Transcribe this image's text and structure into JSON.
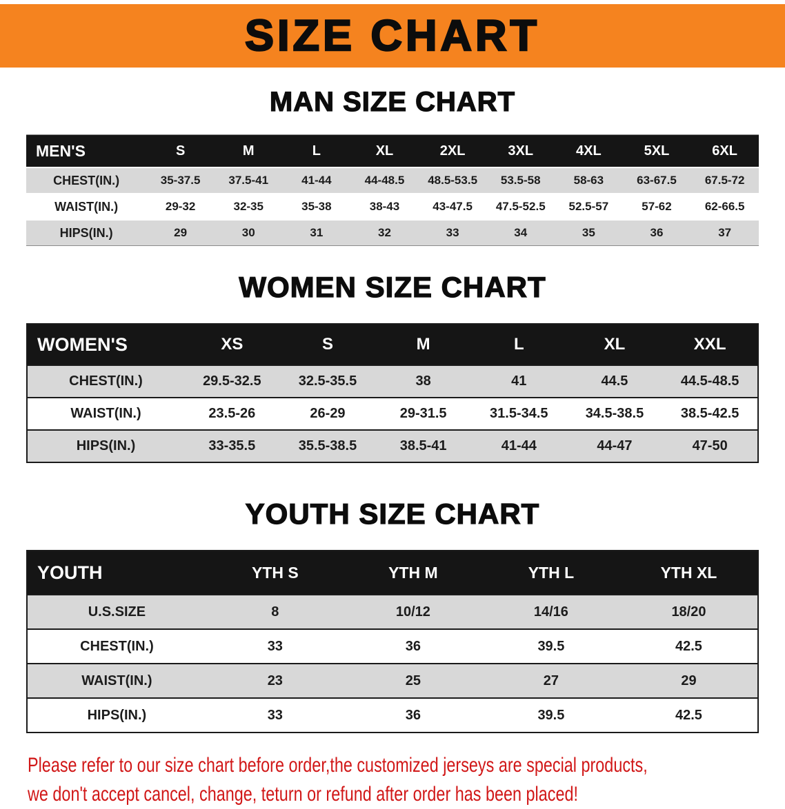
{
  "banner": {
    "title": "SIZE CHART"
  },
  "sections": [
    {
      "heading": "MAN SIZE CHART",
      "table": {
        "label": "MEN'S",
        "columns": [
          "S",
          "M",
          "L",
          "XL",
          "2XL",
          "3XL",
          "4XL",
          "5XL",
          "6XL"
        ],
        "rows": [
          {
            "label": "CHEST(IN.)",
            "values": [
              "35-37.5",
              "37.5-41",
              "41-44",
              "44-48.5",
              "48.5-53.5",
              "53.5-58",
              "58-63",
              "63-67.5",
              "67.5-72"
            ]
          },
          {
            "label": "WAIST(IN.)",
            "values": [
              "29-32",
              "32-35",
              "35-38",
              "38-43",
              "43-47.5",
              "47.5-52.5",
              "52.5-57",
              "57-62",
              "62-66.5"
            ]
          },
          {
            "label": "HIPS(IN.)",
            "values": [
              "29",
              "30",
              "31",
              "32",
              "33",
              "34",
              "35",
              "36",
              "37"
            ]
          }
        ]
      }
    },
    {
      "heading": "WOMEN SIZE CHART",
      "table": {
        "label": "WOMEN'S",
        "columns": [
          "XS",
          "S",
          "M",
          "L",
          "XL",
          "XXL"
        ],
        "rows": [
          {
            "label": "CHEST(IN.)",
            "values": [
              "29.5-32.5",
              "32.5-35.5",
              "38",
              "41",
              "44.5",
              "44.5-48.5"
            ]
          },
          {
            "label": "WAIST(IN.)",
            "values": [
              "23.5-26",
              "26-29",
              "29-31.5",
              "31.5-34.5",
              "34.5-38.5",
              "38.5-42.5"
            ]
          },
          {
            "label": "HIPS(IN.)",
            "values": [
              "33-35.5",
              "35.5-38.5",
              "38.5-41",
              "41-44",
              "44-47",
              "47-50"
            ]
          }
        ]
      }
    },
    {
      "heading": "YOUTH SIZE CHART",
      "table": {
        "label": "YOUTH",
        "columns": [
          "YTH S",
          "YTH M",
          "YTH L",
          "YTH XL"
        ],
        "rows": [
          {
            "label": "U.S.SIZE",
            "values": [
              "8",
              "10/12",
              "14/16",
              "18/20"
            ]
          },
          {
            "label": "CHEST(IN.)",
            "values": [
              "33",
              "36",
              "39.5",
              "42.5"
            ]
          },
          {
            "label": "WAIST(IN.)",
            "values": [
              "23",
              "25",
              "27",
              "29"
            ]
          },
          {
            "label": "HIPS(IN.)",
            "values": [
              "33",
              "36",
              "39.5",
              "42.5"
            ]
          }
        ]
      }
    }
  ],
  "disclaimer": {
    "line1": "Please refer to our size chart before order,the customized jerseys are special products,",
    "line2": "we don't accept cancel, change, teturn or refund after order has been placed!"
  },
  "colors": {
    "banner_bg": "#f5831f",
    "table_header_bg": "#151515",
    "row_alt_bg": "#d8d8d8",
    "disclaimer_text": "#d11717"
  }
}
